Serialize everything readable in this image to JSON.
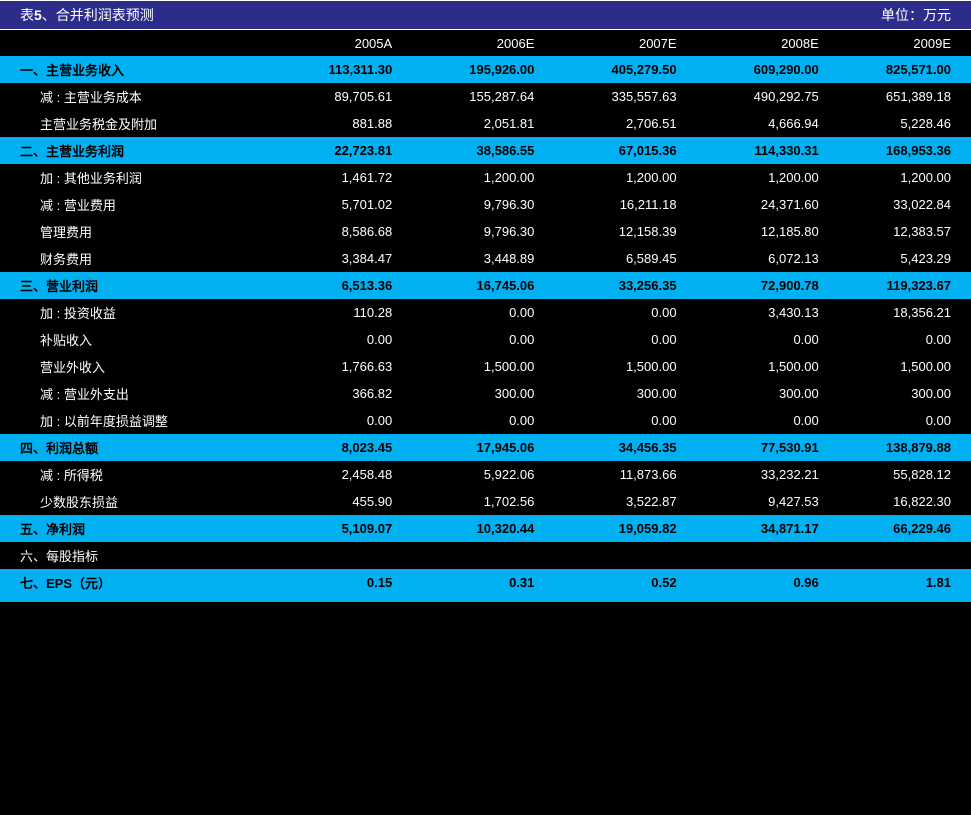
{
  "title_prefix": "表 ",
  "title_num": "5",
  "title_suffix": "、合并利润表预测",
  "unit": "单位：万元",
  "highlight_bg": "#00b0f0",
  "highlight_fg": "#000000",
  "normal_bg": "#000000",
  "normal_fg": "#ffffff",
  "header_bg": "#2c2d8b",
  "col_headers": [
    "2005A",
    "2006E",
    "2007E",
    "2008E",
    "2009E"
  ],
  "rows": [
    {
      "label": "一、主营业务收入",
      "vals": [
        "113,311.30",
        "195,926.00",
        "405,279.50",
        "609,290.00",
        "825,571.00"
      ],
      "highlight": true,
      "indent": 0
    },
    {
      "label": "减 : 主营业务成本",
      "vals": [
        "89,705.61",
        "155,287.64",
        "335,557.63",
        "490,292.75",
        "651,389.18"
      ],
      "highlight": false,
      "indent": 1
    },
    {
      "label": "主营业务税金及附加",
      "vals": [
        "881.88",
        "2,051.81",
        "2,706.51",
        "4,666.94",
        "5,228.46"
      ],
      "highlight": false,
      "indent": 1
    },
    {
      "label": "二、主营业务利润",
      "vals": [
        "22,723.81",
        "38,586.55",
        "67,015.36",
        "114,330.31",
        "168,953.36"
      ],
      "highlight": true,
      "indent": 0
    },
    {
      "label": "加 : 其他业务利润",
      "vals": [
        "1,461.72",
        "1,200.00",
        "1,200.00",
        "1,200.00",
        "1,200.00"
      ],
      "highlight": false,
      "indent": 1
    },
    {
      "label": "减 : 营业费用",
      "vals": [
        "5,701.02",
        "9,796.30",
        "16,211.18",
        "24,371.60",
        "33,022.84"
      ],
      "highlight": false,
      "indent": 1
    },
    {
      "label": "管理费用",
      "vals": [
        "8,586.68",
        "9,796.30",
        "12,158.39",
        "12,185.80",
        "12,383.57"
      ],
      "highlight": false,
      "indent": 1
    },
    {
      "label": "财务费用",
      "vals": [
        "3,384.47",
        "3,448.89",
        "6,589.45",
        "6,072.13",
        "5,423.29"
      ],
      "highlight": false,
      "indent": 1
    },
    {
      "label": "三、营业利润",
      "vals": [
        "6,513.36",
        "16,745.06",
        "33,256.35",
        "72,900.78",
        "119,323.67"
      ],
      "highlight": true,
      "indent": 0
    },
    {
      "label": "加 : 投资收益",
      "vals": [
        "110.28",
        "0.00",
        "0.00",
        "3,430.13",
        "18,356.21"
      ],
      "highlight": false,
      "indent": 1
    },
    {
      "label": "补贴收入",
      "vals": [
        "0.00",
        "0.00",
        "0.00",
        "0.00",
        "0.00"
      ],
      "highlight": false,
      "indent": 1
    },
    {
      "label": "营业外收入",
      "vals": [
        "1,766.63",
        "1,500.00",
        "1,500.00",
        "1,500.00",
        "1,500.00"
      ],
      "highlight": false,
      "indent": 1
    },
    {
      "label": "减 : 营业外支出",
      "vals": [
        "366.82",
        "300.00",
        "300.00",
        "300.00",
        "300.00"
      ],
      "highlight": false,
      "indent": 1
    },
    {
      "label": "加 : 以前年度损益调整",
      "vals": [
        "0.00",
        "0.00",
        "0.00",
        "0.00",
        "0.00"
      ],
      "highlight": false,
      "indent": 1
    },
    {
      "label": "四、利润总额",
      "vals": [
        "8,023.45",
        "17,945.06",
        "34,456.35",
        "77,530.91",
        "138,879.88"
      ],
      "highlight": true,
      "indent": 0
    },
    {
      "label": "减 : 所得税",
      "vals": [
        "2,458.48",
        "5,922.06",
        "11,873.66",
        "33,232.21",
        "55,828.12"
      ],
      "highlight": false,
      "indent": 1
    },
    {
      "label": "少数股东损益",
      "vals": [
        "455.90",
        "1,702.56",
        "3,522.87",
        "9,427.53",
        "16,822.30"
      ],
      "highlight": false,
      "indent": 1
    },
    {
      "label": "五、净利润",
      "vals": [
        "5,109.07",
        "10,320.44",
        "19,059.82",
        "34,871.17",
        "66,229.46"
      ],
      "highlight": true,
      "indent": 0
    },
    {
      "label": "六、每股指标",
      "vals": [
        "",
        "",
        "",
        "",
        ""
      ],
      "highlight": false,
      "indent": 0
    },
    {
      "label": "七、EPS（元）",
      "vals": [
        "0.15",
        "0.31",
        "0.52",
        "0.96",
        "1.81"
      ],
      "highlight": true,
      "indent": 0
    }
  ]
}
